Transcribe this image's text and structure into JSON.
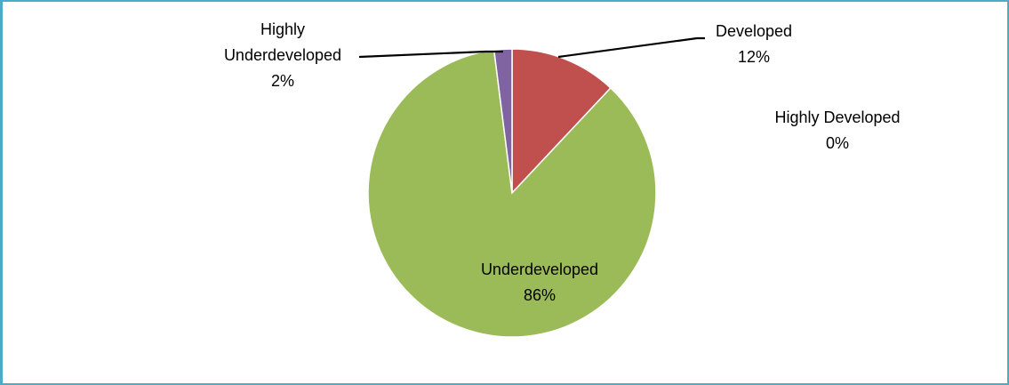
{
  "chart_data": {
    "type": "pie",
    "slices": [
      {
        "name": "Highly Developed",
        "value": 0,
        "label_name": "Highly Developed",
        "label_pct": "0%",
        "color": "#4f81bd"
      },
      {
        "name": "Developed",
        "value": 12,
        "label_name": "Developed",
        "label_pct": "12%",
        "color": "#c0504d"
      },
      {
        "name": "Underdeveloped",
        "value": 86,
        "label_name": "Underdeveloped",
        "label_pct": "86%",
        "color": "#9bbb59"
      },
      {
        "name": "Highly Underdeveloped",
        "value": 2,
        "label_name": "Highly Underdeveloped",
        "label_pct": "2%",
        "color": "#8064a2"
      }
    ],
    "start_angle": "12 o'clock",
    "direction": "clockwise",
    "legend": "none"
  },
  "colors": {
    "frame_border": "#4bacc6",
    "slice_separator": "#ffffff",
    "leader_line": "#000000"
  }
}
